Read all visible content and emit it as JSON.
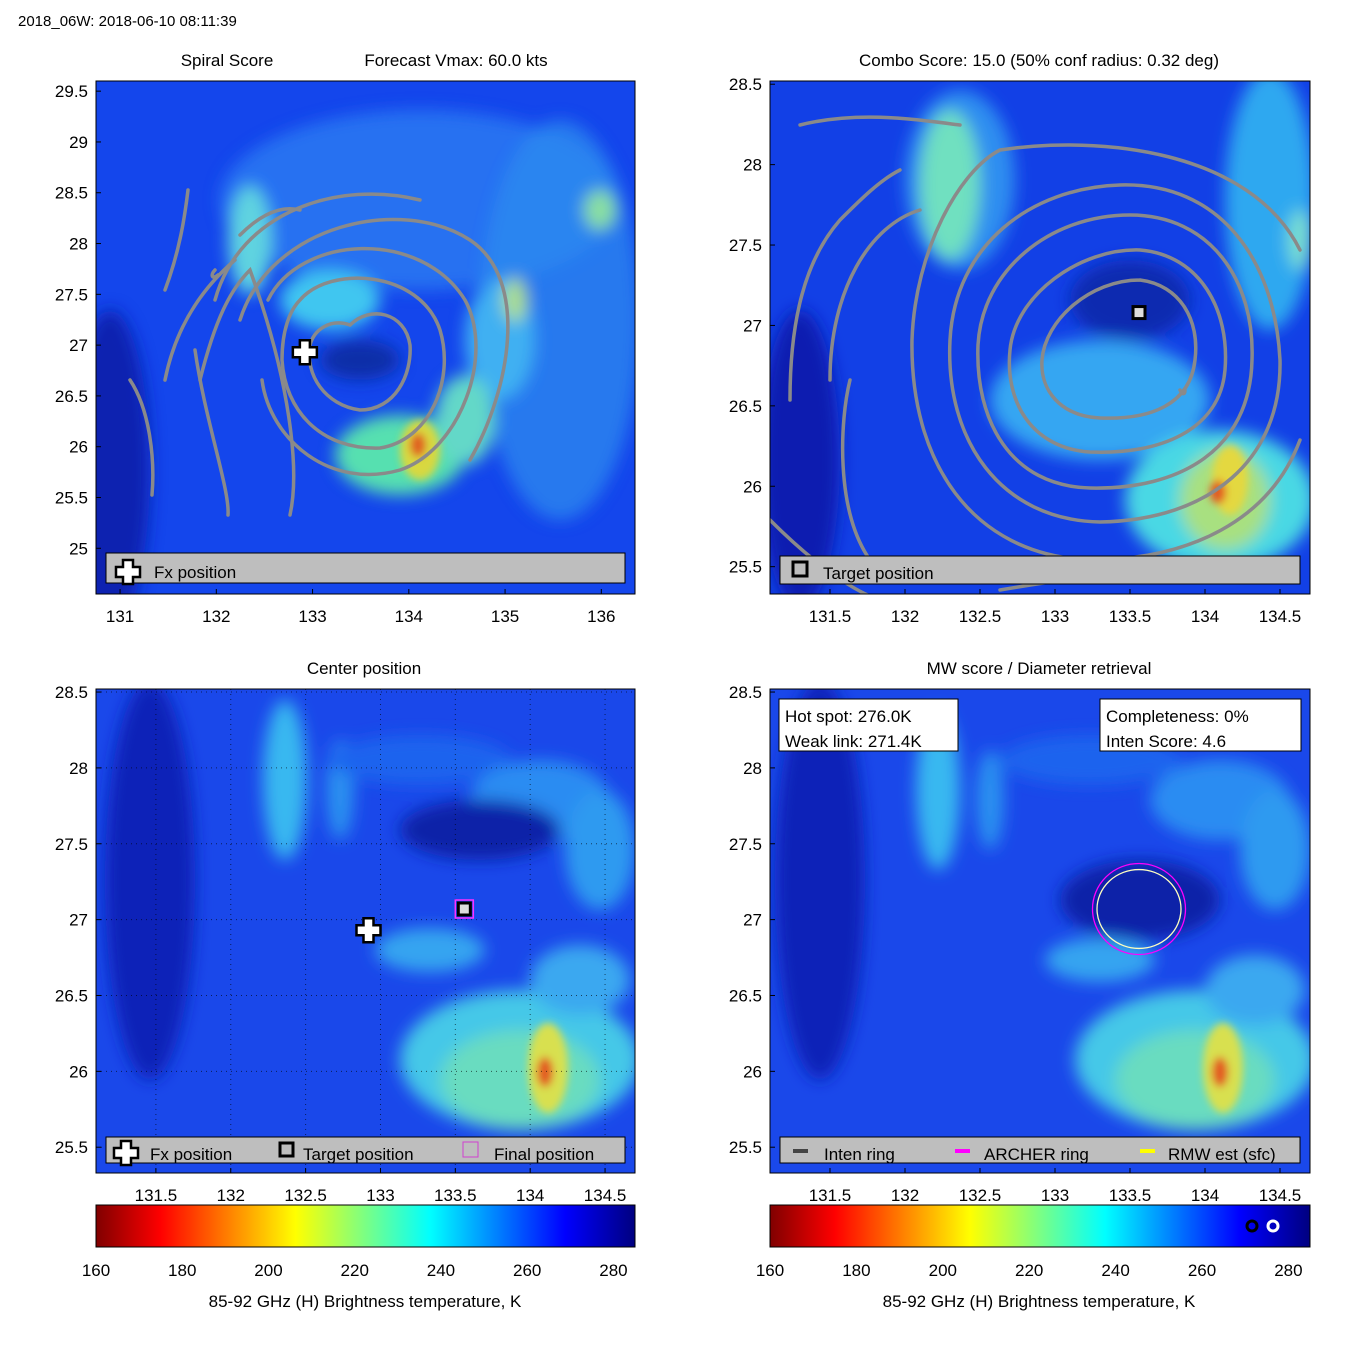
{
  "figure_title": "2018_06W: 2018-06-10 08:11:39",
  "panels": {
    "spiral": {
      "title_left": "Spiral Score",
      "title_right": "Forecast Vmax: 60.0 kts",
      "legend": [
        "Fx position"
      ]
    },
    "combo": {
      "title": "Combo Score: 15.0  (50% conf radius: 0.32 deg)",
      "legend": [
        "Target position"
      ]
    },
    "center": {
      "title": "Center position",
      "legend": [
        "Fx position",
        "Target position",
        "Final position"
      ]
    },
    "mw": {
      "title": "MW score / Diameter retrieval",
      "box_left": [
        "Hot spot: 276.0K",
        "Weak link: 271.4K"
      ],
      "box_right": [
        "Completeness: 0%",
        "Inten Score: 4.6"
      ],
      "legend": [
        "Inten ring",
        "ARCHER ring",
        "RMW est (sfc)"
      ]
    }
  },
  "colorbar": {
    "label": "85-92 GHz (H) Brightness temperature, K",
    "ticks": [
      "160",
      "180",
      "200",
      "220",
      "240",
      "260",
      "280"
    ]
  },
  "chart_data": [
    {
      "type": "heatmap",
      "panel": "spiral",
      "title": "Spiral Score    Forecast Vmax: 60.0 kts",
      "xlim": [
        130.75,
        136.35
      ],
      "ylim": [
        24.55,
        29.6
      ],
      "xticks": [
        131,
        132,
        133,
        134,
        135,
        136
      ],
      "yticks": [
        25,
        25.5,
        26,
        26.5,
        27,
        27.5,
        28,
        28.5,
        29,
        29.5
      ],
      "markers": [
        {
          "label": "Fx position",
          "x": 132.92,
          "y": 26.93,
          "symbol": "cross"
        }
      ],
      "hot_spot": {
        "x": 134.1,
        "y": 25.98,
        "value_K": 185
      }
    },
    {
      "type": "heatmap",
      "panel": "combo",
      "title": "Combo Score: 15.0  (50% conf radius: 0.32 deg)",
      "xlim": [
        131.1,
        134.7
      ],
      "ylim": [
        25.33,
        28.52
      ],
      "xticks": [
        131.5,
        132,
        132.5,
        133,
        133.5,
        134,
        134.5
      ],
      "yticks": [
        25.5,
        26,
        26.5,
        27,
        27.5,
        28,
        28.5
      ],
      "markers": [
        {
          "label": "Target position",
          "x": 133.56,
          "y": 27.08,
          "symbol": "square"
        }
      ],
      "contour_center": {
        "x": 133.5,
        "y": 26.85
      }
    },
    {
      "type": "heatmap",
      "panel": "center",
      "title": "Center position",
      "xlim": [
        131.1,
        134.7
      ],
      "ylim": [
        25.33,
        28.52
      ],
      "xticks": [
        131.5,
        132,
        132.5,
        133,
        133.5,
        134,
        134.5
      ],
      "yticks": [
        25.5,
        26,
        26.5,
        27,
        27.5,
        28,
        28.5
      ],
      "markers": [
        {
          "label": "Fx position",
          "x": 132.92,
          "y": 26.93,
          "symbol": "cross"
        },
        {
          "label": "Target position",
          "x": 133.56,
          "y": 27.07,
          "symbol": "square"
        },
        {
          "label": "Final position",
          "x": 133.56,
          "y": 27.07,
          "symbol": "square-magenta"
        }
      ],
      "grid": "dotted"
    },
    {
      "type": "heatmap",
      "panel": "mw",
      "title": "MW score / Diameter retrieval",
      "xlim": [
        131.1,
        134.7
      ],
      "ylim": [
        25.33,
        28.52
      ],
      "xticks": [
        131.5,
        132,
        132.5,
        133,
        133.5,
        134,
        134.5
      ],
      "yticks": [
        25.5,
        26,
        26.5,
        27,
        27.5,
        28,
        28.5
      ],
      "rings": [
        {
          "label": "ARCHER ring",
          "x": 133.56,
          "y": 27.07,
          "rx_deg": 0.31,
          "ry_deg": 0.3
        },
        {
          "label": "RMW est (sfc)",
          "x": 133.56,
          "y": 27.07,
          "rx_deg": 0.28,
          "ry_deg": 0.26
        }
      ]
    },
    {
      "type": "colorbar",
      "label": "85-92 GHz (H) Brightness temperature, K",
      "range": [
        160,
        285
      ],
      "ticks": [
        160,
        180,
        200,
        220,
        240,
        260,
        280
      ]
    }
  ]
}
